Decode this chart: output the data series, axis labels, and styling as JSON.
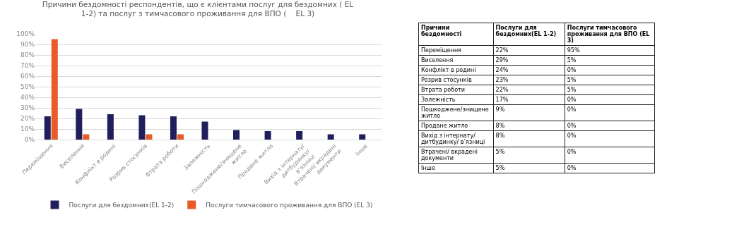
{
  "chart_data": [
    {
      "type": "bar",
      "title": "Причини бездомності респондентів, що є клієнтами послуг для бездомних ( EL 1-2) та послуг з тимчасового проживання для ВПО (    EL 3)",
      "categories": [
        "Переміщення",
        "Виселення",
        "Конфлікт в родині",
        "Розрив стосунків",
        "Втрата роботи",
        "Залежність",
        "Пошкоджене/знищене житло",
        "Продане житло",
        "Вихід з інтернату/ дитбудинку/ в’язниці",
        "Втрачені/ вкрадені документи",
        "Інше"
      ],
      "series": [
        {
          "name": "Послуги для бездомних(EL 1-2)",
          "color": "#1f1f5c",
          "values": [
            22,
            29,
            24,
            23,
            22,
            17,
            9,
            8,
            8,
            5,
            5
          ]
        },
        {
          "name": "Послуги тимчасового проживання для ВПО (EL 3)",
          "color": "#e85a27",
          "values": [
            95,
            5,
            0,
            5,
            5,
            0,
            0,
            0,
            0,
            0,
            0
          ]
        }
      ],
      "ylim": [
        0,
        100
      ],
      "yticks": [
        {
          "value": 0,
          "label": "0%"
        },
        {
          "value": 10,
          "label": "10%"
        },
        {
          "value": 20,
          "label": "20%"
        },
        {
          "value": 30,
          "label": "30%"
        },
        {
          "value": 40,
          "label": "40%"
        },
        {
          "value": 50,
          "label": "50%"
        },
        {
          "value": 60,
          "label": "60%"
        },
        {
          "value": 70,
          "label": "70%"
        },
        {
          "value": 80,
          "label": "80%"
        },
        {
          "value": 90,
          "label": "90%"
        },
        {
          "value": 100,
          "label": "100%"
        }
      ],
      "grid": "y",
      "legend": "bottom"
    },
    {
      "type": "heatmap",
      "ylabel": "Причини бездомності",
      "categories": [
        "Послуги для бездомних(EL 1-2)",
        "Послуги тимчасового проживання для ВПО (EL 3)"
      ],
      "y_categories": [
        "Переміщення",
        "Виселення",
        "Конфлікт в родині",
        "Розрив стосунків",
        "Втрата роботи",
        "Залежність",
        "Пошкоджене/знищене житло",
        "Продане житло",
        "Вихід з інтернату/ дитбудинку/ в’язниці",
        "Втрачені/ вкрадені документи",
        "Інше"
      ],
      "cells": [
        [
          22,
          95
        ],
        [
          29,
          5
        ],
        [
          24,
          0
        ],
        [
          23,
          5
        ],
        [
          22,
          5
        ],
        [
          17,
          0
        ],
        [
          9,
          0
        ],
        [
          8,
          0
        ],
        [
          8,
          0
        ],
        [
          5,
          0
        ],
        [
          5,
          0
        ]
      ],
      "cell_labels": [
        [
          "22%",
          "95%"
        ],
        [
          "29%",
          "5%"
        ],
        [
          "24%",
          "0%"
        ],
        [
          "23%",
          "5%"
        ],
        [
          "22%",
          "5%"
        ],
        [
          "17%",
          "0%"
        ],
        [
          "9%",
          "0%"
        ],
        [
          "8%",
          "0%"
        ],
        [
          "8%",
          "0%"
        ],
        [
          "5%",
          "0%"
        ],
        [
          "5%",
          "0%"
        ]
      ]
    }
  ]
}
